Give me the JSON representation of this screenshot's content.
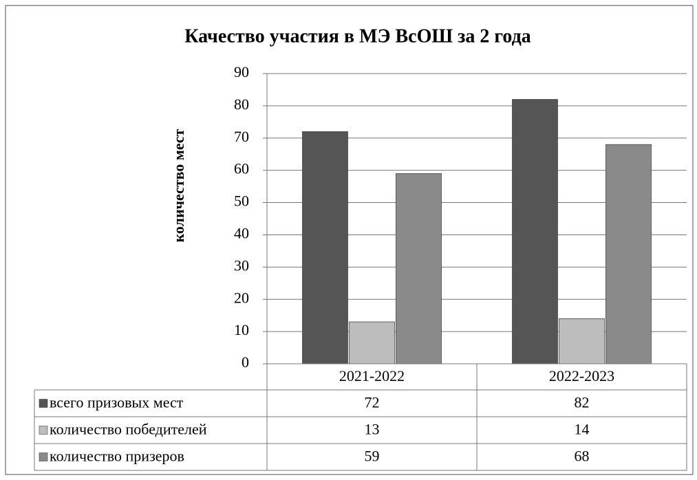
{
  "chart_data": {
    "type": "bar",
    "title": "Качество участия в МЭ ВсОШ за 2 года",
    "y_label": "количество мест",
    "categories": [
      "2021-2022",
      "2022-2023"
    ],
    "series": [
      {
        "name": "всего призовых мест",
        "color": "#555555",
        "values": [
          72,
          82
        ]
      },
      {
        "name": "количество победителей",
        "color": "#bdbdbd",
        "values": [
          13,
          14
        ]
      },
      {
        "name": "количество призеров",
        "color": "#8a8a8a",
        "values": [
          59,
          68
        ]
      }
    ],
    "ylim": [
      0,
      90
    ],
    "yticks": [
      0,
      10,
      20,
      30,
      40,
      50,
      60,
      70,
      80,
      90
    ],
    "grid": true,
    "data_table": true
  }
}
